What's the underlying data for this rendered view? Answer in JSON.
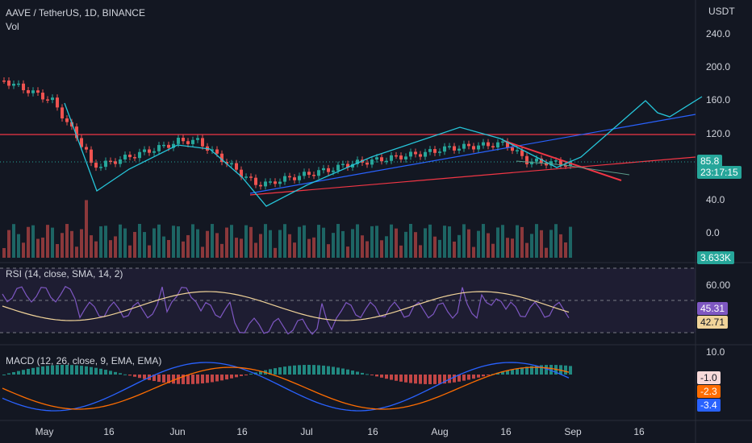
{
  "header": {
    "symbol": "AAVE / TetherUS, 1D, BINANCE",
    "volume_label": "Vol",
    "currency": "USDT"
  },
  "price_scale": [
    "240.0",
    "200.0",
    "160.0",
    "120.0",
    "40.0",
    "0.0"
  ],
  "price_tag": {
    "value": "85.8",
    "countdown": "23:17:15",
    "color": "#26a69a"
  },
  "volume_tag": {
    "value": "3.633K",
    "color": "#26a69a"
  },
  "rsi": {
    "legend": "RSI (14, close, SMA, 14, 2)",
    "scale": [
      "60.00"
    ],
    "value_tag": {
      "value": "45.31",
      "color": "#7e57c2"
    },
    "sma_tag": {
      "value": "42.71",
      "color": "#f0d399"
    }
  },
  "macd": {
    "legend": "MACD (12, 26, close, 9, EMA, EMA)",
    "scale": [
      "10.0"
    ],
    "hist_tag": {
      "value": "-1.0",
      "color": "#f7d9d9"
    },
    "signal_tag": {
      "value": "-2.3",
      "color": "#ff6d00"
    },
    "macd_tag": {
      "value": "-3.4",
      "color": "#2962ff"
    }
  },
  "x_axis": [
    "May",
    "16",
    "Jun",
    "16",
    "Jul",
    "16",
    "Aug",
    "16",
    "Sep",
    "16"
  ],
  "colors": {
    "up": "#26a69a",
    "down": "#ef5350",
    "trend_red": "#f23645",
    "trend_blue": "#2962ff",
    "projection": "#26c6da",
    "rsi_line": "#7e57c2",
    "rsi_sma": "#f0d399",
    "macd_line": "#2962ff",
    "signal_line": "#ff6d00"
  }
}
